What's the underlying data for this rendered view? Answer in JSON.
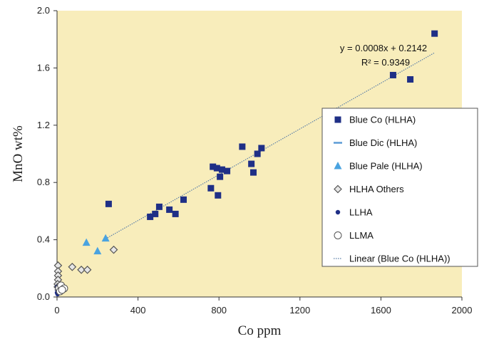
{
  "chart_data": {
    "type": "scatter",
    "xlabel": "Co ppm",
    "ylabel": "MnO wt%",
    "xlim": [
      0,
      2000
    ],
    "ylim": [
      0,
      2.0
    ],
    "xticks": [
      "0",
      "400",
      "800",
      "1200",
      "1600",
      "2000"
    ],
    "yticks": [
      "0.0",
      "0.4",
      "0.8",
      "1.2",
      "1.6",
      "2.0"
    ],
    "plot_background": "#f8edbb",
    "legend_position": "right",
    "series": [
      {
        "name": "Blue Co (HLHA)",
        "marker": "square",
        "color": "#1f2f86",
        "points": [
          [
            1865,
            1.84
          ],
          [
            1660,
            1.55
          ],
          [
            1745,
            1.52
          ],
          [
            255,
            0.65
          ],
          [
            460,
            0.56
          ],
          [
            485,
            0.58
          ],
          [
            505,
            0.63
          ],
          [
            555,
            0.61
          ],
          [
            585,
            0.58
          ],
          [
            625,
            0.68
          ],
          [
            760,
            0.76
          ],
          [
            770,
            0.91
          ],
          [
            790,
            0.9
          ],
          [
            795,
            0.71
          ],
          [
            805,
            0.84
          ],
          [
            815,
            0.89
          ],
          [
            840,
            0.88
          ],
          [
            915,
            1.05
          ],
          [
            960,
            0.93
          ],
          [
            970,
            0.87
          ],
          [
            990,
            1.0
          ],
          [
            1010,
            1.04
          ]
        ]
      },
      {
        "name": "Blue Dic (HLHA)",
        "marker": "dash",
        "color": "#5b9bd5",
        "points": []
      },
      {
        "name": "Blue Pale (HLHA)",
        "marker": "triangle",
        "color": "#4aa3e0",
        "points": [
          [
            145,
            0.38
          ],
          [
            200,
            0.32
          ],
          [
            240,
            0.41
          ]
        ]
      },
      {
        "name": "HLHA Others",
        "marker": "diamond",
        "color": "#555555",
        "points": [
          [
            280,
            0.33
          ],
          [
            75,
            0.21
          ],
          [
            120,
            0.19
          ],
          [
            150,
            0.19
          ],
          [
            5,
            0.22
          ],
          [
            5,
            0.18
          ],
          [
            5,
            0.15
          ],
          [
            5,
            0.12
          ],
          [
            3,
            0.09
          ],
          [
            3,
            0.07
          ],
          [
            8,
            0.05
          ]
        ]
      },
      {
        "name": "LLHA",
        "marker": "dot",
        "color": "#1f2f86",
        "points": [
          [
            0,
            0.03
          ],
          [
            2,
            0.05
          ],
          [
            4,
            0.04
          ],
          [
            6,
            0.06
          ],
          [
            3,
            0.02
          ],
          [
            8,
            0.04
          ],
          [
            1,
            0.07
          ],
          [
            10,
            0.03
          ]
        ]
      },
      {
        "name": "LLMA",
        "marker": "circle",
        "color": "#555555",
        "points": [
          [
            10,
            0.06
          ],
          [
            20,
            0.08
          ],
          [
            35,
            0.06
          ],
          [
            15,
            0.04
          ],
          [
            25,
            0.05
          ]
        ]
      }
    ],
    "trendline": {
      "name": "Linear (Blue Co (HLHA))",
      "slope": 0.0008,
      "intercept": 0.2142,
      "x_range": [
        240,
        1865
      ],
      "color": "#5b7fa8",
      "equation": "y = 0.0008x + 0.2142",
      "r2": "R² = 0.9349"
    },
    "legend": [
      "Blue Co (HLHA)",
      "Blue Dic (HLHA)",
      "Blue Pale (HLHA)",
      "HLHA Others",
      "LLHA",
      "LLMA",
      "Linear (Blue Co (HLHA))"
    ]
  }
}
